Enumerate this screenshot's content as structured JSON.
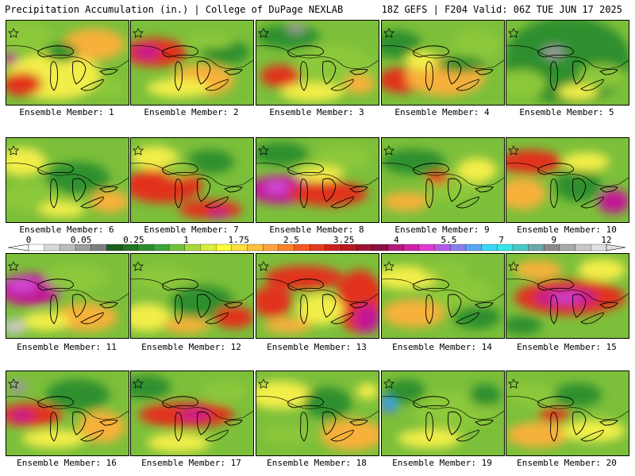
{
  "header": {
    "left": "Precipitation Accumulation (in.) | College of DuPage NEXLAB",
    "right": "18Z GEFS | F204 Valid: 06Z TUE JUN 17 2025"
  },
  "members": [
    {
      "label": "Ensemble Member: 1"
    },
    {
      "label": "Ensemble Member: 2"
    },
    {
      "label": "Ensemble Member: 3"
    },
    {
      "label": "Ensemble Member: 4"
    },
    {
      "label": "Ensemble Member: 5"
    },
    {
      "label": "Ensemble Member: 6"
    },
    {
      "label": "Ensemble Member: 7"
    },
    {
      "label": "Ensemble Member: 8"
    },
    {
      "label": "Ensemble Member: 9"
    },
    {
      "label": "Ensemble Member: 10"
    },
    {
      "label": "Ensemble Member: 11"
    },
    {
      "label": "Ensemble Member: 12"
    },
    {
      "label": "Ensemble Member: 13"
    },
    {
      "label": "Ensemble Member: 14"
    },
    {
      "label": "Ensemble Member: 15"
    },
    {
      "label": "Ensemble Member: 16"
    },
    {
      "label": "Ensemble Member: 17"
    },
    {
      "label": "Ensemble Member: 18"
    },
    {
      "label": "Ensemble Member: 19"
    },
    {
      "label": "Ensemble Member: 20"
    }
  ],
  "colorbar": {
    "labels": [
      "0",
      "0.05",
      "0.25",
      "1",
      "1.75",
      "2.5",
      "3.25",
      "4",
      "5.5",
      "7",
      "9",
      "12"
    ],
    "colors": [
      "#ffffff",
      "#d8d8d8",
      "#bdbdbd",
      "#9e9e9e",
      "#7f7f7f",
      "#1c5e1c",
      "#247524",
      "#2e8b2e",
      "#3aa63a",
      "#6fc23a",
      "#a8d83a",
      "#dcec3a",
      "#ffff3a",
      "#ffe03a",
      "#ffc23a",
      "#ffa33a",
      "#ff7f2a",
      "#f45a22",
      "#e43a1c",
      "#d0201c",
      "#b81a22",
      "#9e1430",
      "#8a1040",
      "#b01a7a",
      "#d021a8",
      "#e43ad0",
      "#b45ae6",
      "#8a7ef0",
      "#5aa6f4",
      "#3ad6f4",
      "#3ae6e6",
      "#4ac8c8",
      "#6aa8a8",
      "#8a8a8a",
      "#aaaaaa",
      "#c8c8c8",
      "#e0e0e0"
    ]
  }
}
